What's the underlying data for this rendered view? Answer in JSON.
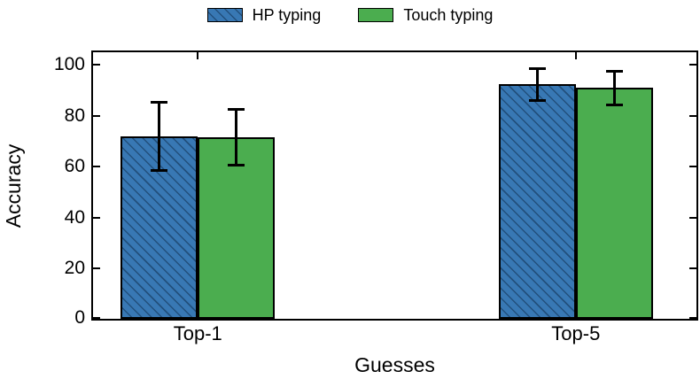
{
  "chart_data": {
    "type": "bar",
    "title": "",
    "xlabel": "Guesses",
    "ylabel": "Accuracy",
    "categories": [
      "Top-1",
      "Top-5"
    ],
    "series": [
      {
        "name": "HP typing",
        "values": [
          71.5,
          92.0
        ],
        "errors": [
          13.5,
          6.5
        ],
        "color": "#3878b4",
        "hatch": "diagonal-lines"
      },
      {
        "name": "Touch typing",
        "values": [
          71.2,
          90.6
        ],
        "errors": [
          11.0,
          6.8
        ],
        "color": "#4bad4f",
        "hatch": "none"
      }
    ],
    "yticks": [
      0,
      20,
      40,
      60,
      80,
      100
    ],
    "ylim": [
      0,
      106
    ],
    "grid": false,
    "legend_position": "top-center",
    "bar_edge_color": "#000000",
    "error_bar_color": "#000000",
    "hatch_line_color": "#102e4e",
    "frame_color": "#000000"
  }
}
